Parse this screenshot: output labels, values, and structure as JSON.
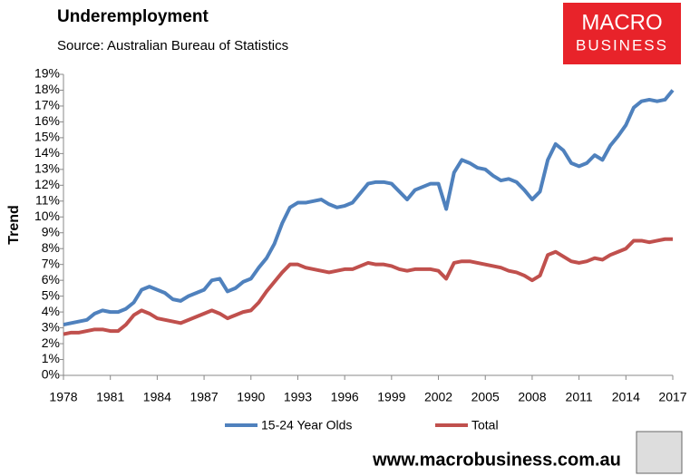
{
  "chart_data": {
    "type": "line",
    "title": "Underemployment",
    "subtitle": "Source: Australian Bureau of Statistics",
    "y_label": "Trend",
    "logo": [
      "MACRO",
      "BUSINESS"
    ],
    "footer": "www.macrobusiness.com.au",
    "legend": "bottom",
    "grid": false,
    "x": [
      1978,
      1978.5,
      1979,
      1979.5,
      1980,
      1980.5,
      1981,
      1981.5,
      1982,
      1982.5,
      1983,
      1983.5,
      1984,
      1984.5,
      1985,
      1985.5,
      1986,
      1986.5,
      1987,
      1987.5,
      1988,
      1988.5,
      1989,
      1989.5,
      1990,
      1990.5,
      1991,
      1991.5,
      1992,
      1992.5,
      1993,
      1993.5,
      1994,
      1994.5,
      1995,
      1995.5,
      1996,
      1996.5,
      1997,
      1997.5,
      1998,
      1998.5,
      1999,
      1999.5,
      2000,
      2000.5,
      2001,
      2001.5,
      2002,
      2002.5,
      2003,
      2003.5,
      2004,
      2004.5,
      2005,
      2005.5,
      2006,
      2006.5,
      2007,
      2007.5,
      2008,
      2008.5,
      2009,
      2009.5,
      2010,
      2010.5,
      2011,
      2011.5,
      2012,
      2012.5,
      2013,
      2013.5,
      2014,
      2014.5,
      2015,
      2015.5,
      2016,
      2016.5,
      2017
    ],
    "series": [
      {
        "name": "15-24 Year Olds",
        "color": "#4f81bd",
        "values": [
          3.2,
          3.3,
          3.4,
          3.5,
          3.9,
          4.1,
          4.0,
          4.0,
          4.2,
          4.6,
          5.4,
          5.6,
          5.4,
          5.2,
          4.8,
          4.7,
          5.0,
          5.2,
          5.4,
          6.0,
          6.1,
          5.3,
          5.5,
          5.9,
          6.1,
          6.8,
          7.4,
          8.3,
          9.6,
          10.6,
          10.9,
          10.9,
          11.0,
          11.1,
          10.8,
          10.6,
          10.7,
          10.9,
          11.5,
          12.1,
          12.2,
          12.2,
          12.1,
          11.6,
          11.1,
          11.7,
          11.9,
          12.1,
          12.1,
          10.5,
          12.8,
          13.6,
          13.4,
          13.1,
          13.0,
          12.6,
          12.3,
          12.4,
          12.2,
          11.7,
          11.1,
          11.6,
          13.6,
          14.6,
          14.2,
          13.4,
          13.2,
          13.4,
          13.9,
          13.6,
          14.5,
          15.1,
          15.8,
          16.9,
          17.3,
          17.4,
          17.3,
          17.4,
          18.0
        ]
      },
      {
        "name": "Total",
        "color": "#c0504d",
        "values": [
          2.6,
          2.7,
          2.7,
          2.8,
          2.9,
          2.9,
          2.8,
          2.8,
          3.2,
          3.8,
          4.1,
          3.9,
          3.6,
          3.5,
          3.4,
          3.3,
          3.5,
          3.7,
          3.9,
          4.1,
          3.9,
          3.6,
          3.8,
          4.0,
          4.1,
          4.6,
          5.3,
          5.9,
          6.5,
          7.0,
          7.0,
          6.8,
          6.7,
          6.6,
          6.5,
          6.6,
          6.7,
          6.7,
          6.9,
          7.1,
          7.0,
          7.0,
          6.9,
          6.7,
          6.6,
          6.7,
          6.7,
          6.7,
          6.6,
          6.1,
          7.1,
          7.2,
          7.2,
          7.1,
          7.0,
          6.9,
          6.8,
          6.6,
          6.5,
          6.3,
          6.0,
          6.3,
          7.6,
          7.8,
          7.5,
          7.2,
          7.1,
          7.2,
          7.4,
          7.3,
          7.6,
          7.8,
          8.0,
          8.5,
          8.5,
          8.4,
          8.5,
          8.6,
          8.6
        ]
      }
    ],
    "xlim": [
      1978,
      2017
    ],
    "xticks": [
      1978,
      1981,
      1984,
      1987,
      1990,
      1993,
      1996,
      1999,
      2002,
      2005,
      2008,
      2011,
      2014,
      2017
    ],
    "ylim": [
      0,
      19
    ],
    "yticks": [
      {
        "value": 0,
        "label": "0%"
      },
      {
        "value": 1,
        "label": "1%"
      },
      {
        "value": 2,
        "label": "2%"
      },
      {
        "value": 3,
        "label": "3%"
      },
      {
        "value": 4,
        "label": "4%"
      },
      {
        "value": 5,
        "label": "5%"
      },
      {
        "value": 6,
        "label": "6%"
      },
      {
        "value": 7,
        "label": "7%"
      },
      {
        "value": 8,
        "label": "8%"
      },
      {
        "value": 9,
        "label": "9%"
      },
      {
        "value": 10,
        "label": "10%"
      },
      {
        "value": 11,
        "label": "11%"
      },
      {
        "value": 12,
        "label": "12%"
      },
      {
        "value": 13,
        "label": "13%"
      },
      {
        "value": 14,
        "label": "14%"
      },
      {
        "value": 15,
        "label": "15%"
      },
      {
        "value": 16,
        "label": "16%"
      },
      {
        "value": 17,
        "label": "17%"
      },
      {
        "value": 18,
        "label": "18%"
      },
      {
        "value": 19,
        "label": "19%"
      }
    ]
  }
}
